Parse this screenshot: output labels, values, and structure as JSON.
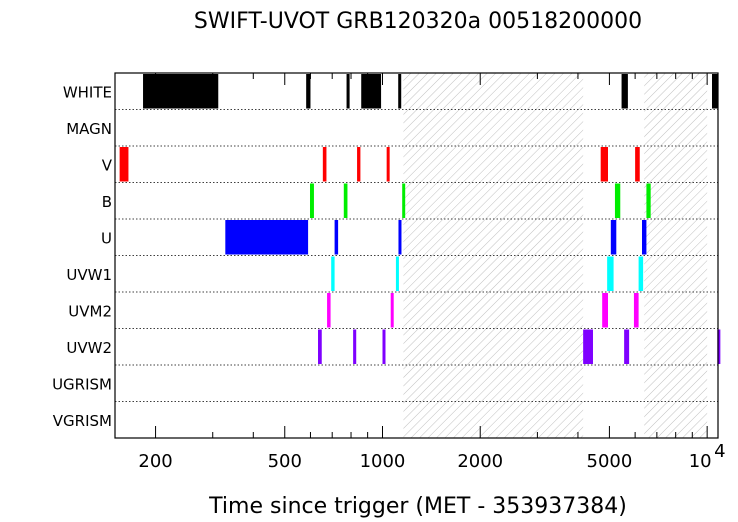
{
  "chart_data": {
    "type": "bar",
    "title": "SWIFT-UVOT GRB120320a 00518200000",
    "xlabel": "Time since trigger (MET - 353937384)",
    "ylabel": "",
    "x_scale": "log",
    "xlim": [
      150,
      10800
    ],
    "x_ticks": [
      {
        "value": 200,
        "label": "200"
      },
      {
        "value": 500,
        "label": "500"
      },
      {
        "value": 1000,
        "label": "1000"
      },
      {
        "value": 2000,
        "label": "2000"
      },
      {
        "value": 5000,
        "label": "5000"
      },
      {
        "value": 10000,
        "label": "10",
        "exponent": "4"
      }
    ],
    "categories": [
      "WHITE",
      "MAGN",
      "V",
      "B",
      "U",
      "UVW1",
      "UVM2",
      "UVW2",
      "UGRISM",
      "VGRISM"
    ],
    "gaps": [
      [
        1160,
        4150
      ],
      [
        6400,
        10000
      ]
    ],
    "series": [
      {
        "filter": "WHITE",
        "color": "#000000",
        "intervals": [
          [
            183,
            312
          ],
          [
            582,
            600
          ],
          [
            775,
            792
          ],
          [
            860,
            990
          ],
          [
            1118,
            1130
          ],
          [
            5450,
            5700
          ],
          [
            10350,
            11000
          ]
        ]
      },
      {
        "filter": "MAGN",
        "color": "#000000",
        "intervals": []
      },
      {
        "filter": "V",
        "color": "#ff0000",
        "intervals": [
          [
            155,
            165
          ],
          [
            655,
            672
          ],
          [
            835,
            855
          ],
          [
            1030,
            1048
          ],
          [
            4700,
            4950
          ],
          [
            6000,
            6200
          ]
        ]
      },
      {
        "filter": "B",
        "color": "#00ee00",
        "intervals": [
          [
            598,
            615
          ],
          [
            760,
            780
          ],
          [
            1150,
            1166
          ],
          [
            5200,
            5400
          ],
          [
            6500,
            6700
          ]
        ]
      },
      {
        "filter": "U",
        "color": "#0000ff",
        "intervals": [
          [
            328,
            590
          ],
          [
            712,
            730
          ],
          [
            1120,
            1140
          ],
          [
            5050,
            5250
          ],
          [
            6300,
            6500
          ]
        ]
      },
      {
        "filter": "UVW1",
        "color": "#00ffff",
        "intervals": [
          [
            695,
            712
          ],
          [
            1100,
            1120
          ],
          [
            4920,
            5150
          ],
          [
            6150,
            6350
          ]
        ]
      },
      {
        "filter": "UVM2",
        "color": "#ff00ff",
        "intervals": [
          [
            675,
            692
          ],
          [
            1060,
            1080
          ],
          [
            4750,
            4950
          ],
          [
            5950,
            6150
          ]
        ]
      },
      {
        "filter": "UVW2",
        "color": "#7f00ff",
        "intervals": [
          [
            633,
            650
          ],
          [
            812,
            830
          ],
          [
            1000,
            1020
          ],
          [
            4150,
            4450
          ],
          [
            5550,
            5750
          ],
          [
            10750,
            11000
          ]
        ]
      },
      {
        "filter": "UGRISM",
        "color": "#000000",
        "intervals": []
      },
      {
        "filter": "VGRISM",
        "color": "#000000",
        "intervals": []
      }
    ]
  }
}
